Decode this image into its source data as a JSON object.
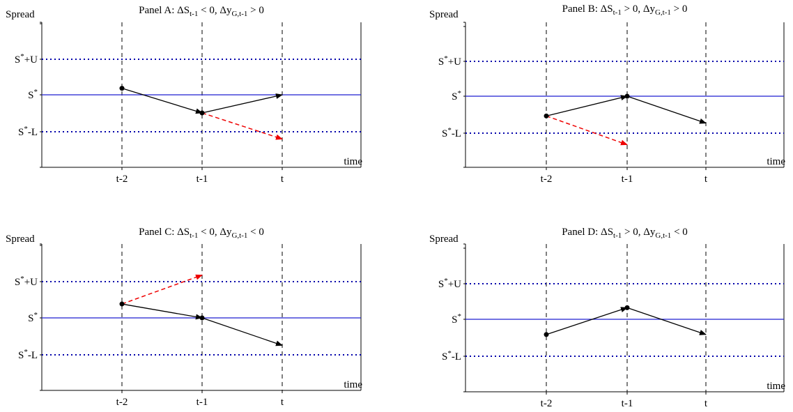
{
  "figure": {
    "labels": {
      "y_axis": "Spread",
      "x_axis": "time",
      "upper_base": "S",
      "upper_sup": "*",
      "upper_suffix": "+U",
      "mid_base": "S",
      "mid_sup": "*",
      "lower_base": "S",
      "lower_sup": "*",
      "lower_suffix": "-L",
      "ticks": [
        "t-2",
        "t-1",
        "t"
      ]
    },
    "colors": {
      "band_line": "#1f1fd0",
      "band_dots": "#0000aa",
      "path": "#000000",
      "alternative_path": "#ee0000",
      "grid": "#000000"
    }
  },
  "panels": [
    {
      "id": "A",
      "title_prefix": "Panel A: ΔS",
      "title_sub1": "t-1",
      "title_mid": " < 0,  Δy",
      "title_sub2": "G,t-1",
      "title_suffix": " > 0",
      "points": [
        0.18,
        -0.5,
        0.0
      ],
      "alt_end": -1.22
    },
    {
      "id": "B",
      "title_prefix": "Panel B: ΔS",
      "title_sub1": "t-1",
      "title_mid": " > 0,  Δy",
      "title_sub2": "G,t-1",
      "title_suffix": " > 0",
      "points": [
        -0.55,
        0.0,
        -0.75
      ],
      "alt_end": -1.35
    },
    {
      "id": "C",
      "title_prefix": "Panel C: ΔS",
      "title_sub1": "t-1",
      "title_mid": " < 0,  Δy",
      "title_sub2": "G,t-1",
      "title_suffix": " < 0",
      "points": [
        0.38,
        0.0,
        -0.75
      ],
      "alt_end": 1.17
    },
    {
      "id": "D",
      "title_prefix": "Panel D: ΔS",
      "title_sub1": "t-1",
      "title_mid": " > 0,  Δy",
      "title_sub2": "G,t-1",
      "title_suffix": " < 0",
      "points": [
        -0.42,
        0.32,
        -0.42
      ],
      "alt_end": null
    }
  ]
}
